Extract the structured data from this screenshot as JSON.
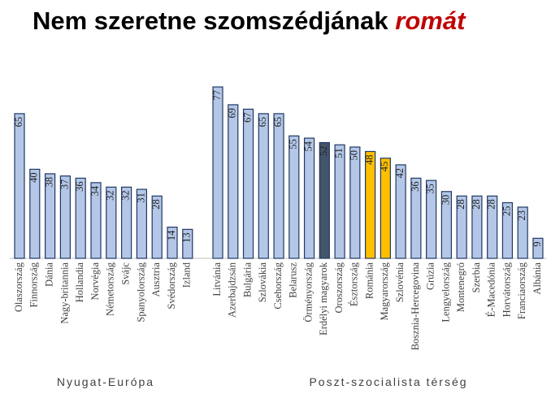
{
  "chart_data": {
    "type": "bar",
    "title": "Nem szeretne szomszédjának",
    "title_emphasis": "romát",
    "ylim": [
      0,
      80
    ],
    "groups": [
      {
        "name": "Nyugat-Európa",
        "categories": [
          "Olaszország",
          "Finnország",
          "Dánia",
          "Nagy-britannia",
          "Hollandia",
          "Norvégia",
          "Németország",
          "Svájc",
          "Spanyolország",
          "Ausztria",
          "Svédország",
          "Izland"
        ],
        "values": [
          65,
          40,
          38,
          37,
          36,
          34,
          32,
          32,
          31,
          28,
          14,
          13
        ],
        "colors": [
          "#b4c7e7",
          "#b4c7e7",
          "#b4c7e7",
          "#b4c7e7",
          "#b4c7e7",
          "#b4c7e7",
          "#b4c7e7",
          "#b4c7e7",
          "#b4c7e7",
          "#b4c7e7",
          "#b4c7e7",
          "#b4c7e7"
        ]
      },
      {
        "name": "Poszt-szocialista térség",
        "categories": [
          "Litvánia",
          "Azerbajdzsán",
          "Bulgária",
          "Szlovákia",
          "Csehország",
          "Belarusz",
          "Örményország",
          "Erdélyi magyarok",
          "Oroszország",
          "Észtország",
          "Románia",
          "Magyarország",
          "Szlovénia",
          "Bosznia-Hercegovina",
          "Grúzia",
          "Lengyelország",
          "Montenegró",
          "Szerbia",
          "É-Macedónia",
          "Horvátország",
          "Franciaország",
          "Albánia"
        ],
        "values": [
          77,
          69,
          67,
          65,
          65,
          55,
          54,
          52,
          51,
          50,
          48,
          45,
          42,
          36,
          35,
          30,
          28,
          28,
          28,
          25,
          23,
          9
        ],
        "colors": [
          "#b4c7e7",
          "#b4c7e7",
          "#b4c7e7",
          "#b4c7e7",
          "#b4c7e7",
          "#b4c7e7",
          "#b4c7e7",
          "#44546a",
          "#b4c7e7",
          "#b4c7e7",
          "#ffc000",
          "#ffc000",
          "#b4c7e7",
          "#b4c7e7",
          "#b4c7e7",
          "#b4c7e7",
          "#b4c7e7",
          "#b4c7e7",
          "#b4c7e7",
          "#b4c7e7",
          "#b4c7e7",
          "#b4c7e7"
        ]
      }
    ]
  }
}
